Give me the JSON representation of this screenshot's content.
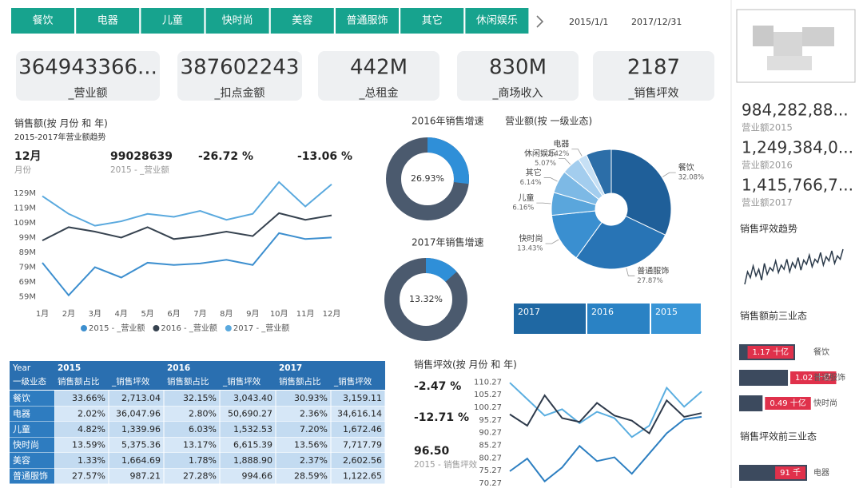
{
  "tabs": [
    "餐饮",
    "电器",
    "儿童",
    "快时尚",
    "美容",
    "普通服饰",
    "其它",
    "休闲娱乐"
  ],
  "date_range": [
    "2015/1/1",
    "2017/12/31"
  ],
  "kpis": [
    {
      "value": "364943366...",
      "label": "_营业额"
    },
    {
      "value": "387602243",
      "label": "_扣点金额"
    },
    {
      "value": "442M",
      "label": "_总租金"
    },
    {
      "value": "830M",
      "label": "_商场收入"
    },
    {
      "value": "2187",
      "label": "_销售坪效"
    }
  ],
  "year_slicer": [
    "2017",
    "2016",
    "2015"
  ],
  "sidebar": {
    "kpis": [
      {
        "value": "984,282,88...",
        "label": "营业额2015"
      },
      {
        "value": "1,249,384,0...",
        "label": "营业额2016"
      },
      {
        "value": "1,415,766,7...",
        "label": "营业额2017"
      }
    ]
  },
  "table": {
    "corner": [
      "Year",
      "一级业态"
    ],
    "years": [
      "2015",
      "2016",
      "2017"
    ],
    "columns": [
      "销售额占比",
      "_销售坪效"
    ],
    "rows": [
      [
        "餐饮",
        "33.66%",
        "2,713.04",
        "32.15%",
        "3,043.40",
        "30.93%",
        "3,159.11"
      ],
      [
        "电器",
        "2.02%",
        "36,047.96",
        "2.80%",
        "50,690.27",
        "2.36%",
        "34,616.14"
      ],
      [
        "儿童",
        "4.82%",
        "1,339.96",
        "6.03%",
        "1,532.53",
        "7.20%",
        "1,672.46"
      ],
      [
        "快时尚",
        "13.59%",
        "5,375.36",
        "13.17%",
        "6,615.39",
        "13.56%",
        "7,717.79"
      ],
      [
        "美容",
        "1.33%",
        "1,664.69",
        "1.78%",
        "1,888.90",
        "2.37%",
        "2,602.56"
      ],
      [
        "普通服饰",
        "27.57%",
        "987.21",
        "27.28%",
        "994.66",
        "28.59%",
        "1,122.65"
      ]
    ]
  },
  "chart_data": [
    {
      "type": "line",
      "title": "销售额(按 月份 和 年)",
      "subtitle": "2015-2017年营业额趋势",
      "cards": [
        {
          "value": "12月",
          "label": "月份"
        },
        {
          "value": "99028639",
          "label": "2015 - _营业额"
        },
        {
          "value": "-26.72 %"
        },
        {
          "value": "-13.06 %"
        }
      ],
      "categories": [
        "1月",
        "2月",
        "3月",
        "4月",
        "5月",
        "6月",
        "7月",
        "8月",
        "9月",
        "10月",
        "11月",
        "12月"
      ],
      "series": [
        {
          "name": "2015 - _营业额",
          "color": "#3d8fcf",
          "values": [
            82000000,
            60000000,
            79000000,
            72000000,
            82000000,
            80500000,
            81500000,
            84000000,
            80500000,
            102000000,
            98000000,
            99028639
          ]
        },
        {
          "name": "2016 - _营业额",
          "color": "#36424f",
          "values": [
            97000000,
            106000000,
            103000000,
            99000000,
            106000000,
            98000000,
            100000000,
            103000000,
            100000000,
            115500000,
            111000000,
            114000000
          ]
        },
        {
          "name": "2017 - _营业额",
          "color": "#5aa9de",
          "values": [
            127000000,
            115000000,
            107000000,
            110000000,
            115000000,
            113000000,
            117000000,
            111000000,
            115000000,
            136500000,
            120000000,
            135000000
          ]
        }
      ],
      "ylim": [
        55000000,
        137000000
      ],
      "yticks": [
        {
          "value": 59000000,
          "label": "59M"
        },
        {
          "value": 69000000,
          "label": "69M"
        },
        {
          "value": 79000000,
          "label": "79M"
        },
        {
          "value": 89000000,
          "label": "89M"
        },
        {
          "value": 99000000,
          "label": "99M"
        },
        {
          "value": 109000000,
          "label": "109M"
        },
        {
          "value": 119000000,
          "label": "119M"
        },
        {
          "value": 129000000,
          "label": "129M"
        }
      ],
      "legend": "bottom"
    },
    {
      "type": "ring",
      "title": "2016年销售增速",
      "values": [
        26.93
      ],
      "value_labels": [
        "26.93%"
      ],
      "color": "#2f8fd8",
      "track_color": "#4b5a6e"
    },
    {
      "type": "ring",
      "title": "2017年销售增速",
      "values": [
        13.32
      ],
      "value_labels": [
        "13.32%"
      ],
      "color": "#2f8fd8",
      "track_color": "#4b5a6e"
    },
    {
      "type": "pie",
      "title": "营业额(按 一级业态)",
      "hole": true,
      "categories": [
        "餐饮",
        "普通服饰",
        "快时尚",
        "儿童",
        "其它",
        "休闲娱乐",
        "电器",
        null
      ],
      "values": [
        32.08,
        27.87,
        13.43,
        6.16,
        6.14,
        5.07,
        2.42,
        6.83
      ],
      "value_labels": [
        "32.08%",
        "27.87%",
        "13.43%",
        "6.16%",
        "6.14%",
        "5.07%",
        "2.42%",
        null
      ],
      "colors": [
        "#1f5f99",
        "#2874b5",
        "#3a8fd0",
        "#5aa6dc",
        "#7db9e5",
        "#a3cdee",
        "#c6e0f5",
        "#2c6ea8"
      ]
    },
    {
      "type": "line",
      "title": "销售坪效(按 月份 和 年)",
      "cards": [
        {
          "value": "-2.47 %"
        },
        {
          "value": "-12.71 %"
        },
        {
          "value": "96.50",
          "label": "2015 - 销售坪效"
        }
      ],
      "categories": [
        null,
        null,
        null,
        null,
        null,
        null,
        null,
        null,
        null,
        null,
        null,
        null
      ],
      "series": [
        {
          "color": "#5aaee0",
          "values": [
            110.0,
            103.5,
            97.0,
            99.5,
            94.0,
            98.5,
            96.0,
            88.5,
            93.0,
            108.0,
            100.5,
            106.5
          ]
        },
        {
          "color": "#2e3a4b",
          "values": [
            97.5,
            93.0,
            105.0,
            96.0,
            94.5,
            102.0,
            97.0,
            95.0,
            90.0,
            103.0,
            96.5,
            98.0
          ]
        },
        {
          "color": "#2d7fc1",
          "values": [
            75.0,
            80.0,
            71.0,
            76.5,
            85.0,
            79.0,
            80.5,
            74.0,
            82.0,
            90.0,
            95.5,
            96.5
          ]
        }
      ],
      "ylim": [
        69,
        111
      ],
      "yticks": [
        70.27,
        75.27,
        80.27,
        85.27,
        90.27,
        95.27,
        100.27,
        105.27,
        110.27
      ]
    },
    {
      "type": "sparkline",
      "title": "销售坪效趋势",
      "color": "#2b3a4a",
      "values": [
        70,
        85,
        78,
        92,
        80,
        88,
        75,
        95,
        82,
        90,
        86,
        98,
        84,
        93,
        88,
        100,
        85,
        96,
        90,
        102,
        87,
        99,
        94,
        105,
        91,
        100,
        96,
        108,
        93,
        103,
        98,
        110,
        95,
        104,
        100,
        112
      ]
    },
    {
      "type": "hbar",
      "title": "销售额前三业态",
      "categories": [
        "餐饮",
        "普通服饰",
        "快时尚"
      ],
      "values": [
        1.17,
        1.02,
        0.49
      ],
      "value_labels": [
        "1.17 十亿",
        "1.02 十亿",
        "0.49 十亿"
      ],
      "color": "#3c4a5e",
      "label_color": "#e0314b"
    },
    {
      "type": "hbar",
      "title": "销售坪效前三业态",
      "categories": [
        "电器"
      ],
      "values": [
        91
      ],
      "value_labels": [
        "91 千"
      ],
      "color": "#3c4a5e",
      "label_color": "#e0314b"
    }
  ]
}
